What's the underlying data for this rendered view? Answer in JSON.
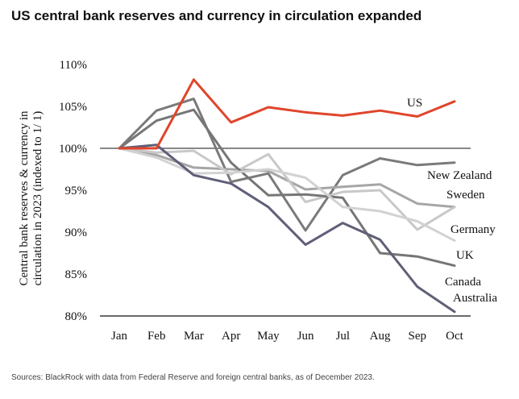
{
  "chart_data": {
    "type": "line",
    "title": "US central bank reserves and currency in circulation expanded",
    "ylabel_line1": "Central bank reserves & currency in",
    "ylabel_line2": "circulation in 2023  (indexed to 1/ 1)",
    "xlabel": "",
    "categories": [
      "Jan",
      "Feb",
      "Mar",
      "Apr",
      "May",
      "Jun",
      "Jul",
      "Aug",
      "Sep",
      "Oct"
    ],
    "ylim": [
      80,
      110
    ],
    "yticks": [
      80,
      85,
      90,
      95,
      100,
      105,
      110
    ],
    "ytick_labels": [
      "80%",
      "85%",
      "90%",
      "95%",
      "100%",
      "105%",
      "110%"
    ],
    "reference_line": 100,
    "series": [
      {
        "name": "US",
        "color": "#e0452b",
        "values": [
          100,
          100,
          108.2,
          103.1,
          104.9,
          104.3,
          103.9,
          104.5,
          103.8,
          105.6
        ]
      },
      {
        "name": "New Zealand",
        "color": "#7a7a7a",
        "values": [
          100,
          104.5,
          105.9,
          96.0,
          97.0,
          90.2,
          96.8,
          98.8,
          98.0,
          98.3
        ]
      },
      {
        "name": "Sweden",
        "color": "#a6a6a6",
        "values": [
          100,
          99.2,
          97.7,
          97.5,
          97.3,
          95.1,
          95.4,
          95.7,
          93.4,
          93.0
        ]
      },
      {
        "name": "Germany",
        "color": "#c8c8c8",
        "values": [
          100,
          99.5,
          99.7,
          96.9,
          99.3,
          93.6,
          94.8,
          95.0,
          90.3,
          93.0
        ]
      },
      {
        "name": "UK",
        "color": "#767676",
        "values": [
          100,
          103.3,
          104.6,
          98.3,
          94.4,
          94.5,
          94.1,
          87.5,
          87.1,
          86.0
        ]
      },
      {
        "name": "Canada",
        "color": "#d2d2d2",
        "values": [
          100,
          98.9,
          97.0,
          97.1,
          97.5,
          96.5,
          93.0,
          92.5,
          91.3,
          89.0
        ]
      },
      {
        "name": "Australia",
        "color": "#5f5f78",
        "values": [
          100,
          100.4,
          96.8,
          95.8,
          93.0,
          88.5,
          91.1,
          89.1,
          83.5,
          80.5
        ]
      }
    ],
    "grid": false,
    "legend": "inline-right"
  },
  "footer": {
    "source": "Sources: BlackRock with data from Federal Reserve and foreign central banks, as of December 2023."
  }
}
